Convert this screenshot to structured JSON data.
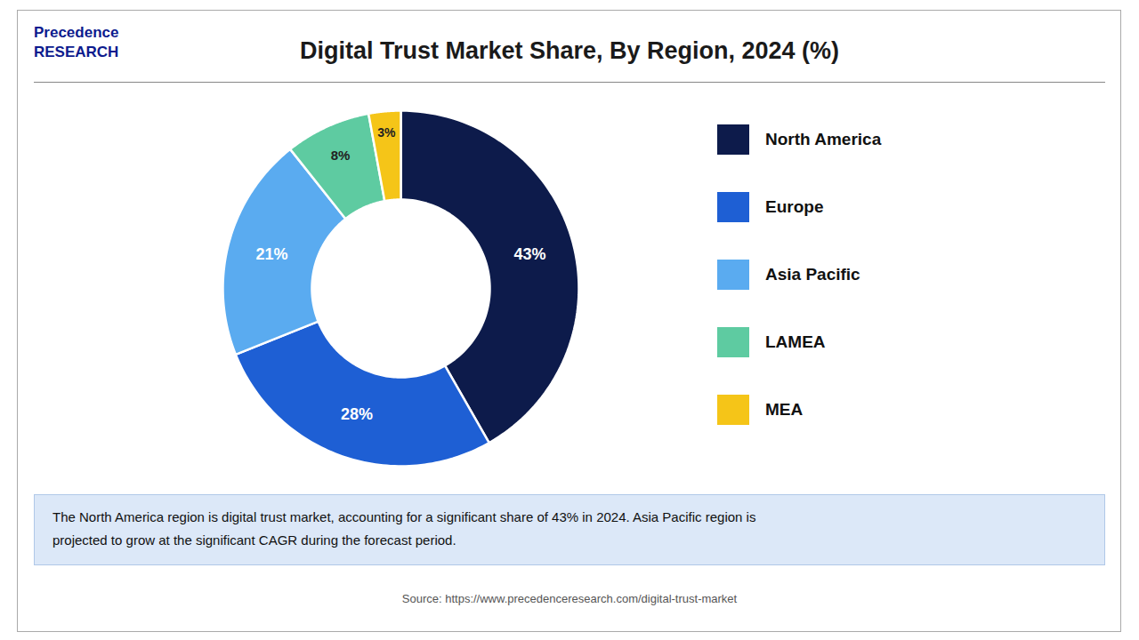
{
  "chart_data": {
    "type": "pie",
    "title": "Digital Trust Market Share, By Region, 2024 (%)",
    "categories": [
      "North America",
      "Europe",
      "Asia Pacific",
      "LAMEA",
      "MEA"
    ],
    "values": [
      43,
      28,
      21,
      8,
      3
    ],
    "value_labels": [
      "43%",
      "28%",
      "21%",
      "8%",
      "3%"
    ],
    "colors": [
      "#0d1b4b",
      "#1e5fd4",
      "#5aabf0",
      "#5ecba1",
      "#f5c518"
    ],
    "data_labels": true,
    "legend": "right",
    "annotations": [
      "Precedence",
      "RESEARCH",
      "The North America region is digital trust market, accounting for a significant share of 43% in 2024. Asia Pacific region is\nprojected to grow at the significant CAGR during the forecast period.",
      "Source: https://www.precedenceresearch.com/digital-trust-market"
    ]
  }
}
